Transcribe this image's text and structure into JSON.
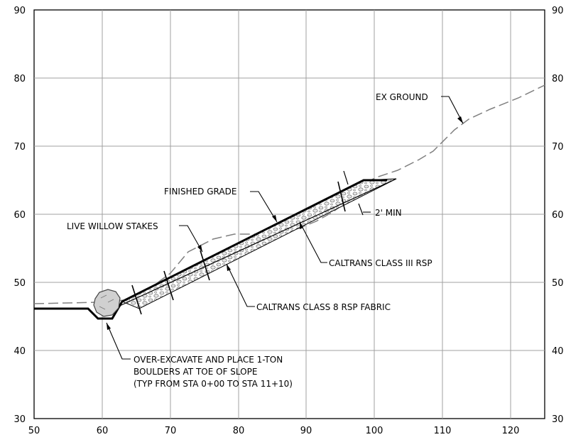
{
  "axes": {
    "x_ticks": [
      "50",
      "60",
      "70",
      "80",
      "90",
      "100",
      "110",
      "120"
    ],
    "y_ticks": [
      "30",
      "40",
      "50",
      "60",
      "70",
      "80",
      "90"
    ],
    "y_ticks_right": [
      "30",
      "40",
      "50",
      "60",
      "70",
      "80",
      "90"
    ]
  },
  "labels": {
    "ex_ground": "EX GROUND",
    "finished_grade": "FINISHED GRADE",
    "live_willow": "LIVE WILLOW STAKES",
    "two_min": "2' MIN",
    "rsp_class3": "CALTRANS CLASS III RSP",
    "rsp_fabric": "CALTRANS CLASS 8 RSP FABRIC",
    "boulders_line1": "OVER-EXCAVATE AND PLACE 1-TON",
    "boulders_line2": "BOULDERS AT TOE OF SLOPE",
    "boulders_line3": "(TYP FROM STA 0+00 TO STA 11+10)"
  },
  "colors": {
    "grid": "#a0a0a0",
    "grade": "#000000",
    "ex_ground": "#808080",
    "boulder_fill": "#d0d0d0"
  }
}
